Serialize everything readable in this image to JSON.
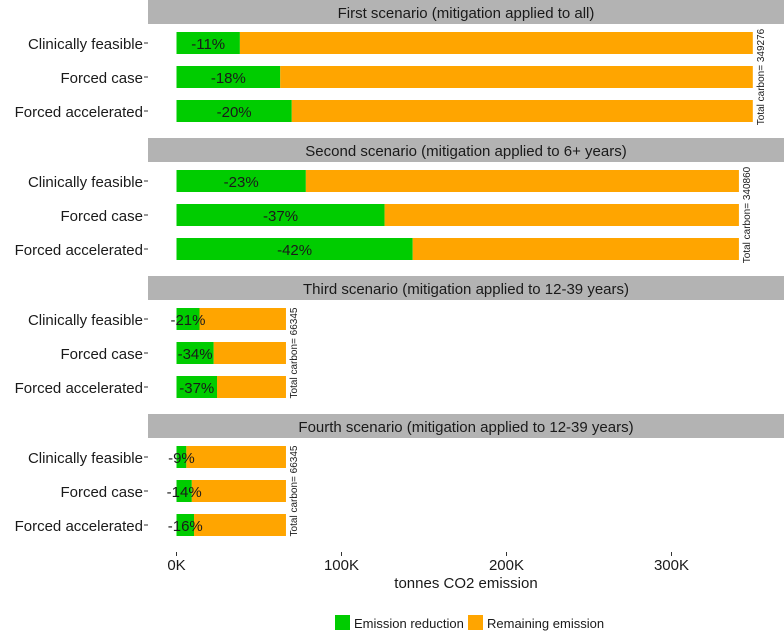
{
  "chart_data": {
    "type": "bar",
    "orientation": "horizontal",
    "stacked": true,
    "xlabel": "tonnes CO2 emission",
    "ylabel": "",
    "xlim": [
      0,
      370000
    ],
    "xticks": [
      {
        "value": 0,
        "label": "0K"
      },
      {
        "value": 100000,
        "label": "100K"
      },
      {
        "value": 200000,
        "label": "200K"
      },
      {
        "value": 300000,
        "label": "300K"
      }
    ],
    "grid": false,
    "legend_position": "bottom",
    "legend": [
      {
        "name": "Emission reduction",
        "color": "#00cc00"
      },
      {
        "name": "Remaining emission",
        "color": "#ffa500"
      }
    ],
    "categories": [
      "Clinically feasible",
      "Forced case",
      "Forced accelerated"
    ],
    "panels": [
      {
        "title": "First scenario (mitigation applied to all)",
        "total": 349276,
        "total_label": "Total carbon= 349276",
        "bars": [
          {
            "category": "Clinically feasible",
            "pct": 11,
            "label": "-11%"
          },
          {
            "category": "Forced case",
            "pct": 18,
            "label": "-18%"
          },
          {
            "category": "Forced accelerated",
            "pct": 20,
            "label": "-20%"
          }
        ]
      },
      {
        "title": "Second scenario (mitigation applied to 6+ years)",
        "total": 340860,
        "total_label": "Total carbon= 340860",
        "bars": [
          {
            "category": "Clinically feasible",
            "pct": 23,
            "label": "-23%"
          },
          {
            "category": "Forced case",
            "pct": 37,
            "label": "-37%"
          },
          {
            "category": "Forced accelerated",
            "pct": 42,
            "label": "-42%"
          }
        ]
      },
      {
        "title": "Third scenario (mitigation applied to 12-39 years)",
        "total": 66345,
        "total_label": "Total carbon= 66345",
        "bars": [
          {
            "category": "Clinically feasible",
            "pct": 21,
            "label": "-21%"
          },
          {
            "category": "Forced case",
            "pct": 34,
            "label": "-34%"
          },
          {
            "category": "Forced accelerated",
            "pct": 37,
            "label": "-37%"
          }
        ]
      },
      {
        "title": "Fourth scenario (mitigation applied to 12-39 years)",
        "total": 66345,
        "total_label": "Total carbon= 66345",
        "bars": [
          {
            "category": "Clinically feasible",
            "pct": 9,
            "label": "-9%"
          },
          {
            "category": "Forced case",
            "pct": 14,
            "label": "-14%"
          },
          {
            "category": "Forced accelerated",
            "pct": 16,
            "label": "-16%"
          }
        ]
      }
    ]
  }
}
